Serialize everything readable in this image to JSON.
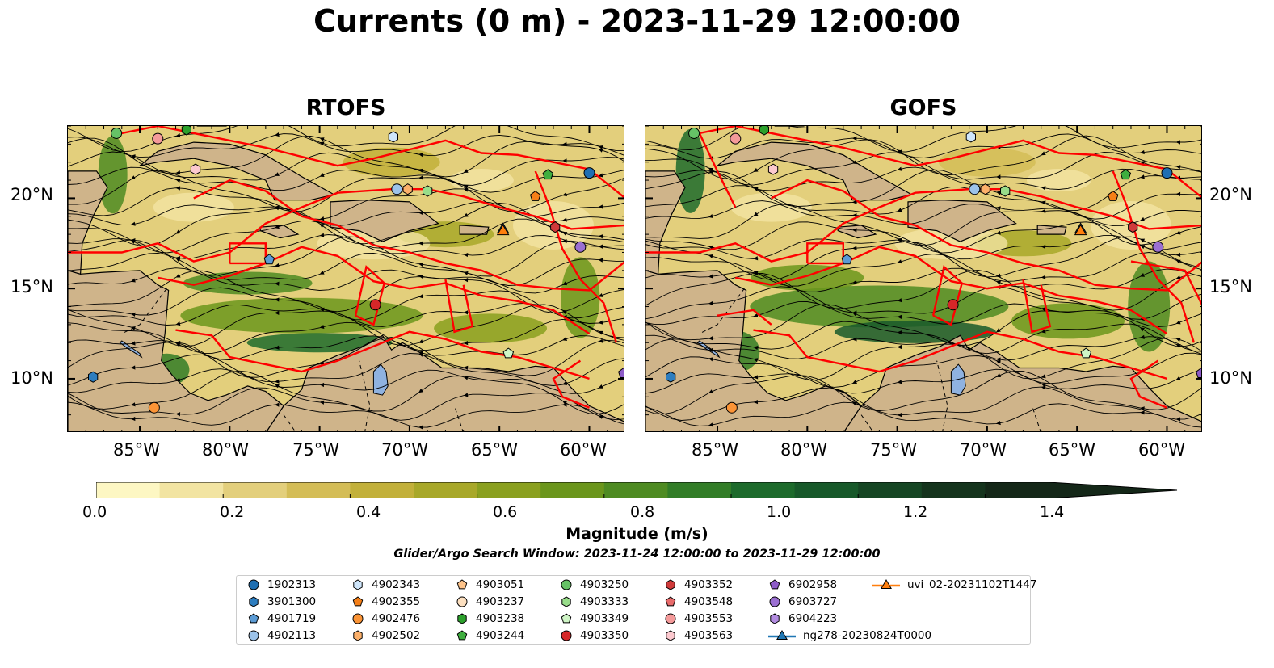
{
  "title": "Currents (0 m) - 2023-11-29 12:00:00",
  "panels": [
    {
      "title": "RTOFS"
    },
    {
      "title": "GOFS"
    }
  ],
  "axes": {
    "lon_ticks": [
      "85°W",
      "80°W",
      "75°W",
      "70°W",
      "65°W",
      "60°W"
    ],
    "lat_ticks": [
      "20°N",
      "15°N",
      "10°N"
    ]
  },
  "colorbar": {
    "label": "Magnitude (m/s)",
    "ticks": [
      "0.0",
      "0.2",
      "0.4",
      "0.6",
      "0.8",
      "1.0",
      "1.2",
      "1.4"
    ],
    "range": [
      0.0,
      1.5
    ],
    "extend": "max",
    "colors": [
      "#fdf7c3",
      "#f2e4a2",
      "#e3cf7c",
      "#d4bd57",
      "#c2b03a",
      "#a8a829",
      "#8aa01f",
      "#6b961c",
      "#4e8b22",
      "#327d27",
      "#1d6b2c",
      "#17592a",
      "#164624",
      "#15341d",
      "#142718"
    ]
  },
  "map_colors": {
    "land": "#cfb48a",
    "lake": "#8fb2e0",
    "red_lines": "#ff0000",
    "streamlines": "#000000"
  },
  "search_window": "Glider/Argo Search Window: 2023-11-24 12:00:00 to 2023-11-29 12:00:00",
  "legend": [
    {
      "label": "1902313",
      "color": "#1f6fb2",
      "marker": "circle"
    },
    {
      "label": "3901300",
      "color": "#2d7dbf",
      "marker": "hexagon"
    },
    {
      "label": "4901719",
      "color": "#5b9bd5",
      "marker": "pentagon"
    },
    {
      "label": "4902113",
      "color": "#9cc3ea",
      "marker": "circle"
    },
    {
      "label": "4902343",
      "color": "#cfe6fb",
      "marker": "hexagon"
    },
    {
      "label": "4902355",
      "color": "#f57f17",
      "marker": "pentagon"
    },
    {
      "label": "4902476",
      "color": "#fb9436",
      "marker": "circle"
    },
    {
      "label": "4902502",
      "color": "#fcb06a",
      "marker": "hexagon"
    },
    {
      "label": "4903051",
      "color": "#fdc38a",
      "marker": "pentagon"
    },
    {
      "label": "4903237",
      "color": "#fde0c0",
      "marker": "circle"
    },
    {
      "label": "4903238",
      "color": "#2ca02c",
      "marker": "hexagon"
    },
    {
      "label": "4903244",
      "color": "#3fae3f",
      "marker": "pentagon"
    },
    {
      "label": "4903250",
      "color": "#66c266",
      "marker": "circle"
    },
    {
      "label": "4903333",
      "color": "#98dd8a",
      "marker": "hexagon"
    },
    {
      "label": "4903349",
      "color": "#cff5c6",
      "marker": "pentagon"
    },
    {
      "label": "4903350",
      "color": "#d62728",
      "marker": "circle"
    },
    {
      "label": "4903352",
      "color": "#d03a3a",
      "marker": "hexagon"
    },
    {
      "label": "4903548",
      "color": "#e86b6b",
      "marker": "pentagon"
    },
    {
      "label": "4903553",
      "color": "#f49a9a",
      "marker": "circle"
    },
    {
      "label": "4903563",
      "color": "#fcc9cf",
      "marker": "hexagon"
    },
    {
      "label": "6902958",
      "color": "#8e5cc8",
      "marker": "pentagon"
    },
    {
      "label": "6903727",
      "color": "#9b6fd2",
      "marker": "circle"
    },
    {
      "label": "6904223",
      "color": "#b28ce0",
      "marker": "hexagon"
    },
    {
      "label": "ng278-20230824T0000",
      "color": "#1f77b4",
      "marker": "triangle-line"
    },
    {
      "label": "uvi_02-20231102T1447",
      "color": "#ff7f0e",
      "marker": "triangle-line"
    }
  ],
  "floats": [
    {
      "id": "1902313",
      "lon": -60.0,
      "lat": 21.4
    },
    {
      "id": "3901300",
      "lon": -87.6,
      "lat": 10.1
    },
    {
      "id": "4901719",
      "lon": -77.8,
      "lat": 16.6
    },
    {
      "id": "4902113",
      "lon": -70.7,
      "lat": 20.5
    },
    {
      "id": "4902343",
      "lon": -70.9,
      "lat": 23.4
    },
    {
      "id": "4902355",
      "lon": -63.0,
      "lat": 20.1
    },
    {
      "id": "4902476",
      "lon": -84.2,
      "lat": 8.4
    },
    {
      "id": "4902502",
      "lon": -70.1,
      "lat": 20.5
    },
    {
      "id": "4903238",
      "lon": -82.4,
      "lat": 23.8
    },
    {
      "id": "4903244",
      "lon": -62.3,
      "lat": 21.3
    },
    {
      "id": "4903250",
      "lon": -86.3,
      "lat": 23.6
    },
    {
      "id": "4903333",
      "lon": -69.0,
      "lat": 20.4
    },
    {
      "id": "4903349",
      "lon": -64.5,
      "lat": 11.4
    },
    {
      "id": "4903350",
      "lon": -71.9,
      "lat": 14.1
    },
    {
      "id": "4903352",
      "lon": -61.9,
      "lat": 18.4
    },
    {
      "id": "4903553",
      "lon": -84.0,
      "lat": 23.3
    },
    {
      "id": "4903563",
      "lon": -81.9,
      "lat": 21.6
    },
    {
      "id": "6902958",
      "lon": -58.1,
      "lat": 10.3
    },
    {
      "id": "6903727",
      "lon": -60.5,
      "lat": 17.3
    }
  ],
  "gliders": [
    {
      "id": "ng278-20230824T0000",
      "lon": -64.8,
      "lat": 18.3
    },
    {
      "id": "uvi_02-20231102T1447",
      "lon": -64.8,
      "lat": 18.2
    }
  ],
  "extent": {
    "lon_min": -89,
    "lon_max": -58,
    "lat_min": 7,
    "lat_max": 24
  }
}
